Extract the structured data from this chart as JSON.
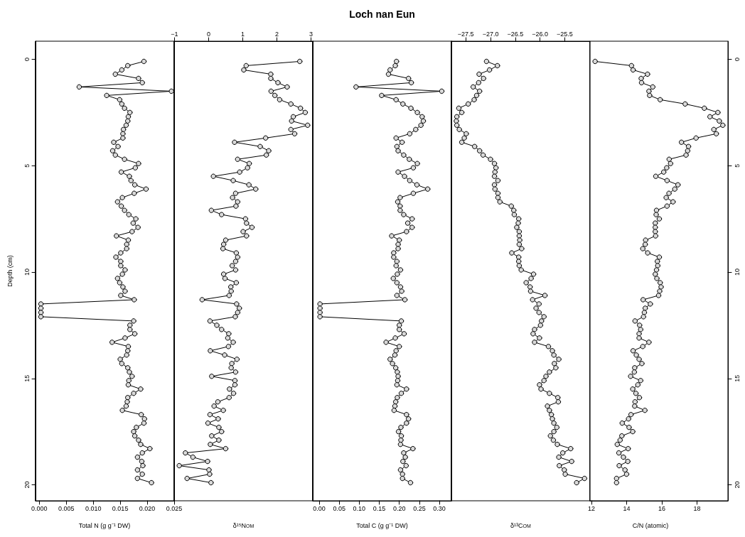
{
  "chart_data": [
    {
      "type": "line",
      "xlabel": "Total N (g g⁻¹ DW)",
      "ylabel": "Depth (cm)",
      "marker": "circle",
      "line_style": "solid",
      "xlim": [
        -0.0007,
        0.025
      ],
      "xticks": [
        {
          "value": 0,
          "label": "0.000"
        },
        0.005,
        {
          "value": 0.01,
          "label": "0.010"
        },
        0.015,
        {
          "value": 0.02,
          "label": "0.020"
        },
        0.025
      ],
      "ylim": [
        20.75,
        -0.85
      ],
      "yticks": [
        0,
        5,
        10,
        15,
        20
      ],
      "series": [
        {
          "color": "#000000",
          "x": [
            0.0194,
            0.0164,
            0.0153,
            0.0141,
            0.0184,
            0.0191,
            0.0074,
            0.0245,
            0.0125,
            0.0149,
            0.0153,
            0.0158,
            0.0168,
            0.0165,
            0.0164,
            0.0161,
            0.0156,
            0.0155,
            0.0155,
            0.0138,
            0.0146,
            0.0136,
            0.0141,
            0.0158,
            0.0184,
            0.0178,
            0.0152,
            0.0167,
            0.017,
            0.0177,
            0.0198,
            0.0176,
            0.0154,
            0.0145,
            0.0152,
            0.0158,
            0.0166,
            0.0179,
            0.0174,
            0.0183,
            0.0172,
            0.0143,
            0.0165,
            0.0162,
            0.0162,
            0.0151,
            0.0142,
            0.0151,
            0.0151,
            0.0159,
            0.0154,
            0.0145,
            0.0149,
            0.0155,
            0.0159,
            0.0151,
            0.0176,
            0.0003,
            0.0003,
            0.0003,
            0.0003,
            0.0175,
            0.0168,
            0.0168,
            0.0177,
            0.0159,
            0.0135,
            0.0165,
            0.0164,
            0.0162,
            0.015,
            0.0153,
            0.0164,
            0.0167,
            0.0172,
            0.0166,
            0.0165,
            0.0188,
            0.0175,
            0.0164,
            0.0163,
            0.0161,
            0.0154,
            0.0189,
            0.0195,
            0.0194,
            0.018,
            0.0175,
            0.0177,
            0.0184,
            0.0188,
            0.0205,
            0.0191,
            0.0182,
            0.019,
            0.0192,
            0.0182,
            0.0191,
            0.0182,
            0.0208
          ],
          "values": [
            0.1,
            0.3,
            0.5,
            0.7,
            0.9,
            1.1,
            1.3,
            1.5,
            1.7,
            1.9,
            2.1,
            2.3,
            2.5,
            2.7,
            2.9,
            3.1,
            3.3,
            3.5,
            3.7,
            3.9,
            4.1,
            4.3,
            4.5,
            4.7,
            4.9,
            5.1,
            5.3,
            5.5,
            5.7,
            5.9,
            6.1,
            6.3,
            6.5,
            6.7,
            6.9,
            7.1,
            7.3,
            7.5,
            7.7,
            7.9,
            8.1,
            8.3,
            8.5,
            8.7,
            8.9,
            9.1,
            9.3,
            9.5,
            9.7,
            9.9,
            10.1,
            10.3,
            10.5,
            10.7,
            10.9,
            11.1,
            11.3,
            11.5,
            11.7,
            11.9,
            12.1,
            12.3,
            12.5,
            12.7,
            12.9,
            13.1,
            13.3,
            13.5,
            13.7,
            13.9,
            14.1,
            14.3,
            14.5,
            14.7,
            14.9,
            15.1,
            15.3,
            15.5,
            15.7,
            15.9,
            16.1,
            16.3,
            16.5,
            16.7,
            16.9,
            17.1,
            17.3,
            17.5,
            17.7,
            17.9,
            18.1,
            18.3,
            18.5,
            18.7,
            18.9,
            19.1,
            19.3,
            19.5,
            19.7,
            19.9
          ]
        }
      ]
    },
    {
      "type": "line",
      "xlabel": "δ¹⁵N$_{OM}$",
      "marker": "circle",
      "line_style": "solid",
      "tick_labels": "x",
      "xlim": [
        -1.01,
        3.05
      ],
      "xticks": [
        {
          "value": -1,
          "label": "−1"
        },
        0,
        1,
        2,
        3
      ],
      "ylim": [
        20.75,
        -0.85
      ],
      "yticks": [
        0,
        5,
        10,
        15,
        20
      ],
      "series": [
        {
          "color": "#000000",
          "x": [
            2.67,
            1.1,
            1.03,
            1.82,
            1.82,
            2.03,
            2.3,
            1.83,
            1.94,
            2.08,
            2.41,
            2.69,
            2.83,
            2.48,
            2.43,
            2.9,
            2.41,
            2.52,
            1.67,
            0.76,
            1.51,
            1.76,
            1.69,
            0.85,
            1.19,
            1.14,
            0.91,
            0.14,
            0.72,
            1.18,
            1.38,
            0.79,
            0.7,
            0.85,
            0.8,
            0.08,
            0.38,
            1.08,
            1.11,
            1.27,
            1.01,
            1.11,
            0.5,
            0.44,
            0.42,
            0.81,
            0.85,
            0.79,
            0.69,
            0.79,
            0.44,
            0.48,
            0.81,
            0.65,
            0.66,
            0.6,
            -0.19,
            0.82,
            0.9,
            0.85,
            0.78,
            0.04,
            0.24,
            0.38,
            0.59,
            0.56,
            0.72,
            0.58,
            0.05,
            0.47,
            0.83,
            0.68,
            0.66,
            0.79,
            0.09,
            0.77,
            0.77,
            0.61,
            0.73,
            0.6,
            0.27,
            0.16,
            0.43,
            0.04,
            0.28,
            -0.02,
            0.3,
            0.38,
            0.09,
            0.3,
            0.05,
            0.5,
            -0.68,
            -0.46,
            -0.03,
            -0.86,
            0.01,
            0.03,
            -0.63,
            0.07
          ],
          "values": [
            0.1,
            0.3,
            0.5,
            0.7,
            0.9,
            1.1,
            1.3,
            1.5,
            1.7,
            1.9,
            2.1,
            2.3,
            2.5,
            2.7,
            2.9,
            3.1,
            3.3,
            3.5,
            3.7,
            3.9,
            4.1,
            4.3,
            4.5,
            4.7,
            4.9,
            5.1,
            5.3,
            5.5,
            5.7,
            5.9,
            6.1,
            6.3,
            6.5,
            6.7,
            6.9,
            7.1,
            7.3,
            7.5,
            7.7,
            7.9,
            8.1,
            8.3,
            8.5,
            8.7,
            8.9,
            9.1,
            9.3,
            9.5,
            9.7,
            9.9,
            10.1,
            10.3,
            10.5,
            10.7,
            10.9,
            11.1,
            11.3,
            11.5,
            11.7,
            11.9,
            12.1,
            12.3,
            12.5,
            12.7,
            12.9,
            13.1,
            13.3,
            13.5,
            13.7,
            13.9,
            14.1,
            14.3,
            14.5,
            14.7,
            14.9,
            15.1,
            15.3,
            15.5,
            15.7,
            15.9,
            16.1,
            16.3,
            16.5,
            16.7,
            16.9,
            17.1,
            17.3,
            17.5,
            17.7,
            17.9,
            18.1,
            18.3,
            18.5,
            18.7,
            18.9,
            19.1,
            19.3,
            19.5,
            19.7,
            19.9
          ]
        }
      ]
    },
    {
      "type": "line",
      "title": "Loch nan Eun",
      "xlabel": "Total C (g g⁻¹ DW)",
      "marker": "circle",
      "line_style": "solid",
      "tick_labels": "x",
      "xlim": [
        -0.016,
        0.33
      ],
      "xticks": [
        {
          "value": 0,
          "label": "0.00"
        },
        0.05,
        {
          "value": 0.1,
          "label": "0.10"
        },
        0.15,
        {
          "value": 0.2,
          "label": "0.20"
        },
        0.25,
        {
          "value": 0.3,
          "label": "0.30"
        }
      ],
      "ylim": [
        20.75,
        -0.85
      ],
      "yticks": [
        0,
        5,
        10,
        15,
        20
      ],
      "series": [
        {
          "color": "#000000",
          "x": [
            0.193,
            0.19,
            0.177,
            0.173,
            0.223,
            0.23,
            0.092,
            0.306,
            0.156,
            0.192,
            0.209,
            0.229,
            0.245,
            0.257,
            0.26,
            0.254,
            0.241,
            0.226,
            0.192,
            0.207,
            0.194,
            0.197,
            0.211,
            0.225,
            0.245,
            0.235,
            0.197,
            0.213,
            0.226,
            0.244,
            0.271,
            0.235,
            0.202,
            0.196,
            0.202,
            0.202,
            0.211,
            0.232,
            0.221,
            0.232,
            0.218,
            0.181,
            0.2,
            0.197,
            0.197,
            0.186,
            0.186,
            0.194,
            0.192,
            0.203,
            0.195,
            0.185,
            0.194,
            0.203,
            0.206,
            0.194,
            0.214,
            0.002,
            0.002,
            0.002,
            0.002,
            0.205,
            0.2,
            0.2,
            0.212,
            0.19,
            0.167,
            0.2,
            0.192,
            0.189,
            0.177,
            0.183,
            0.191,
            0.195,
            0.197,
            0.196,
            0.194,
            0.218,
            0.205,
            0.195,
            0.191,
            0.189,
            0.187,
            0.218,
            0.223,
            0.218,
            0.204,
            0.198,
            0.205,
            0.204,
            0.203,
            0.234,
            0.211,
            0.215,
            0.209,
            0.217,
            0.203,
            0.208,
            0.208,
            0.228
          ],
          "values": [
            0.1,
            0.3,
            0.5,
            0.7,
            0.9,
            1.1,
            1.3,
            1.5,
            1.7,
            1.9,
            2.1,
            2.3,
            2.5,
            2.7,
            2.9,
            3.1,
            3.3,
            3.5,
            3.7,
            3.9,
            4.1,
            4.3,
            4.5,
            4.7,
            4.9,
            5.1,
            5.3,
            5.5,
            5.7,
            5.9,
            6.1,
            6.3,
            6.5,
            6.7,
            6.9,
            7.1,
            7.3,
            7.5,
            7.7,
            7.9,
            8.1,
            8.3,
            8.5,
            8.7,
            8.9,
            9.1,
            9.3,
            9.5,
            9.7,
            9.9,
            10.1,
            10.3,
            10.5,
            10.7,
            10.9,
            11.1,
            11.3,
            11.5,
            11.7,
            11.9,
            12.1,
            12.3,
            12.5,
            12.7,
            12.9,
            13.1,
            13.3,
            13.5,
            13.7,
            13.9,
            14.1,
            14.3,
            14.5,
            14.7,
            14.9,
            15.1,
            15.3,
            15.5,
            15.7,
            15.9,
            16.1,
            16.3,
            16.5,
            16.7,
            16.9,
            17.1,
            17.3,
            17.5,
            17.7,
            17.9,
            18.1,
            18.3,
            18.5,
            18.7,
            18.9,
            19.1,
            19.3,
            19.5,
            19.7,
            19.9
          ]
        }
      ]
    },
    {
      "type": "line",
      "xlabel": "δ¹³C$_{OM}$",
      "marker": "circle",
      "line_style": "solid",
      "tick_labels": "x",
      "xlim": [
        -27.79,
        -24.99
      ],
      "xticks": [
        {
          "value": -27.5,
          "label": "−27.5"
        },
        {
          "value": -27,
          "label": "−27.0"
        },
        {
          "value": -26.5,
          "label": "−26.5"
        },
        {
          "value": -26,
          "label": "−26.0"
        },
        {
          "value": -25.5,
          "label": "−25.5"
        }
      ],
      "ylim": [
        20.75,
        -0.85
      ],
      "yticks": [
        0,
        5,
        10,
        15,
        20
      ],
      "series": [
        {
          "color": "#000000",
          "x": [
            -27.08,
            -26.86,
            -27.02,
            -27.23,
            -27.14,
            -27.24,
            -27.35,
            -27.22,
            -27.28,
            -27.33,
            -27.45,
            -27.64,
            -27.58,
            -27.68,
            -27.69,
            -27.68,
            -27.63,
            -27.49,
            -27.53,
            -27.58,
            -27.32,
            -27.22,
            -27.15,
            -27.0,
            -26.92,
            -26.89,
            -26.91,
            -26.92,
            -26.85,
            -26.92,
            -26.91,
            -26.85,
            -26.85,
            -26.81,
            -26.58,
            -26.53,
            -26.52,
            -26.43,
            -26.44,
            -26.47,
            -26.42,
            -26.42,
            -26.41,
            -26.42,
            -26.37,
            -26.57,
            -26.43,
            -26.43,
            -26.42,
            -26.38,
            -26.13,
            -26.18,
            -26.28,
            -26.2,
            -26.19,
            -25.9,
            -26.15,
            -26.02,
            -26.08,
            -26.02,
            -25.92,
            -25.97,
            -25.99,
            -26.11,
            -26.14,
            -26.01,
            -26.11,
            -25.83,
            -25.75,
            -25.72,
            -25.62,
            -25.71,
            -25.68,
            -25.81,
            -25.88,
            -25.92,
            -26.01,
            -25.98,
            -25.81,
            -25.64,
            -25.63,
            -25.85,
            -25.81,
            -25.77,
            -25.75,
            -25.72,
            -25.66,
            -25.72,
            -25.79,
            -25.73,
            -25.65,
            -25.38,
            -25.54,
            -25.62,
            -25.36,
            -25.61,
            -25.51,
            -25.49,
            -25.1,
            -25.26
          ],
          "values": [
            0.1,
            0.3,
            0.5,
            0.7,
            0.9,
            1.1,
            1.3,
            1.5,
            1.7,
            1.9,
            2.1,
            2.3,
            2.5,
            2.7,
            2.9,
            3.1,
            3.3,
            3.5,
            3.7,
            3.9,
            4.1,
            4.3,
            4.5,
            4.7,
            4.9,
            5.1,
            5.3,
            5.5,
            5.7,
            5.9,
            6.1,
            6.3,
            6.5,
            6.7,
            6.9,
            7.1,
            7.3,
            7.5,
            7.7,
            7.9,
            8.1,
            8.3,
            8.5,
            8.7,
            8.9,
            9.1,
            9.3,
            9.5,
            9.7,
            9.9,
            10.1,
            10.3,
            10.5,
            10.7,
            10.9,
            11.1,
            11.3,
            11.5,
            11.7,
            11.9,
            12.1,
            12.3,
            12.5,
            12.7,
            12.9,
            13.1,
            13.3,
            13.5,
            13.7,
            13.9,
            14.1,
            14.3,
            14.5,
            14.7,
            14.9,
            15.1,
            15.3,
            15.5,
            15.7,
            15.9,
            16.1,
            16.3,
            16.5,
            16.7,
            16.9,
            17.1,
            17.3,
            17.5,
            17.7,
            17.9,
            18.1,
            18.3,
            18.5,
            18.7,
            18.9,
            19.1,
            19.3,
            19.5,
            19.7,
            19.9
          ]
        }
      ]
    },
    {
      "type": "line",
      "xlabel": "C/N (atomic)",
      "marker": "circle",
      "line_style": "solid",
      "xlim": [
        11.92,
        19.76
      ],
      "xticks": [
        12,
        14,
        16,
        18
      ],
      "y2lim": [
        20.75,
        -0.85
      ],
      "y2ticks": [
        0,
        5,
        10,
        15,
        20
      ],
      "series": [
        {
          "color": "#000000",
          "axis": "y2",
          "x": [
            12.21,
            14.28,
            14.37,
            15.19,
            14.83,
            14.85,
            15.49,
            15.27,
            15.31,
            15.91,
            17.33,
            18.42,
            19.19,
            18.74,
            19.27,
            19.47,
            18.96,
            19.1,
            17.95,
            17.12,
            17.52,
            17.47,
            17.38,
            16.42,
            16.5,
            16.28,
            16.11,
            15.66,
            16.3,
            16.92,
            16.74,
            16.41,
            16.25,
            16.64,
            16.3,
            15.7,
            15.68,
            15.86,
            15.63,
            15.63,
            15.63,
            15.65,
            15.08,
            15.06,
            14.92,
            15.2,
            15.86,
            15.75,
            15.77,
            15.7,
            15.63,
            15.72,
            15.91,
            15.96,
            15.88,
            15.82,
            14.94,
            15.35,
            15.06,
            15.01,
            14.96,
            14.48,
            14.74,
            14.8,
            14.71,
            14.71,
            15.27,
            14.92,
            14.37,
            14.55,
            14.71,
            14.87,
            14.46,
            14.44,
            14.23,
            14.8,
            14.64,
            14.35,
            14.53,
            14.73,
            14.48,
            14.46,
            15.04,
            14.25,
            14.11,
            13.75,
            14.14,
            14.35,
            13.73,
            13.63,
            13.47,
            14.09,
            13.56,
            13.82,
            14.07,
            13.58,
            13.91,
            14.0,
            13.43,
            13.43
          ],
          "values": [
            0.1,
            0.3,
            0.5,
            0.7,
            0.9,
            1.1,
            1.3,
            1.5,
            1.7,
            1.9,
            2.1,
            2.3,
            2.5,
            2.7,
            2.9,
            3.1,
            3.3,
            3.5,
            3.7,
            3.9,
            4.1,
            4.3,
            4.5,
            4.7,
            4.9,
            5.1,
            5.3,
            5.5,
            5.7,
            5.9,
            6.1,
            6.3,
            6.5,
            6.7,
            6.9,
            7.1,
            7.3,
            7.5,
            7.7,
            7.9,
            8.1,
            8.3,
            8.5,
            8.7,
            8.9,
            9.1,
            9.3,
            9.5,
            9.7,
            9.9,
            10.1,
            10.3,
            10.5,
            10.7,
            10.9,
            11.1,
            11.3,
            11.5,
            11.7,
            11.9,
            12.1,
            12.3,
            12.5,
            12.7,
            12.9,
            13.1,
            13.3,
            13.5,
            13.7,
            13.9,
            14.1,
            14.3,
            14.5,
            14.7,
            14.9,
            15.1,
            15.3,
            15.5,
            15.7,
            15.9,
            16.1,
            16.3,
            16.5,
            16.7,
            16.9,
            17.1,
            17.3,
            17.5,
            17.7,
            17.9,
            18.1,
            18.3,
            18.5,
            18.7,
            18.9,
            19.1,
            19.3,
            19.5,
            19.7,
            19.9
          ]
        }
      ]
    }
  ]
}
